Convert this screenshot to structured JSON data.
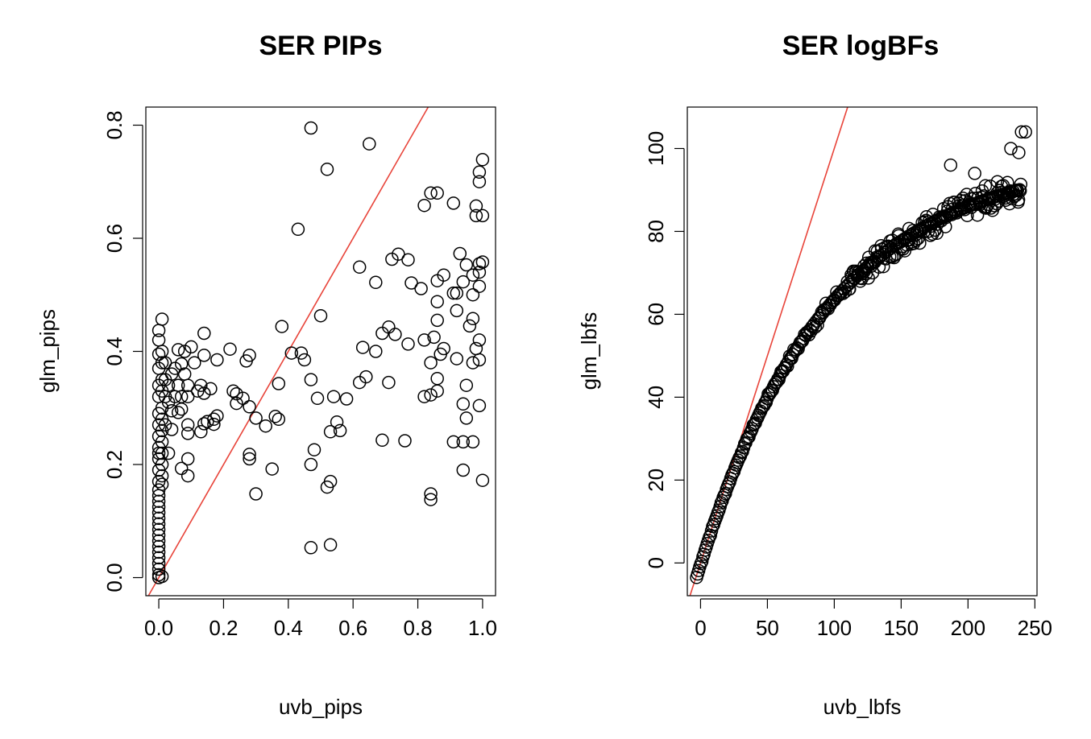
{
  "colors": {
    "points": "#000000",
    "refline": "#E8443A",
    "axes": "#000000",
    "background": "#FFFFFF"
  },
  "chart_data": [
    {
      "type": "scatter",
      "title": "SER PIPs",
      "xlabel": "uvb_pips",
      "ylabel": "glm_pips",
      "xlim": [
        -0.04,
        1.04
      ],
      "ylim": [
        -0.032,
        0.832
      ],
      "xticks": [
        0.0,
        0.2,
        0.4,
        0.6,
        0.8,
        1.0
      ],
      "xtick_labels": [
        "0.0",
        "0.2",
        "0.4",
        "0.6",
        "0.8",
        "1.0"
      ],
      "yticks": [
        0.0,
        0.2,
        0.4,
        0.6,
        0.8
      ],
      "ytick_labels": [
        "0.0",
        "0.2",
        "0.4",
        "0.6",
        "0.8"
      ],
      "reference_line": {
        "intercept": 0,
        "slope": 1
      },
      "points": [
        [
          0.47,
          0.795
        ],
        [
          0.65,
          0.767
        ],
        [
          0.52,
          0.722
        ],
        [
          0.43,
          0.616
        ],
        [
          0.5,
          0.463
        ],
        [
          0.38,
          0.444
        ],
        [
          0.84,
          0.68
        ],
        [
          0.86,
          0.68
        ],
        [
          0.82,
          0.658
        ],
        [
          0.91,
          0.662
        ],
        [
          0.98,
          0.657
        ],
        [
          1.0,
          0.739
        ],
        [
          0.99,
          0.717
        ],
        [
          0.99,
          0.7
        ],
        [
          0.98,
          0.64
        ],
        [
          1.0,
          0.64
        ],
        [
          0.93,
          0.573
        ],
        [
          0.95,
          0.553
        ],
        [
          0.74,
          0.572
        ],
        [
          0.72,
          0.563
        ],
        [
          0.77,
          0.562
        ],
        [
          0.62,
          0.549
        ],
        [
          0.86,
          0.525
        ],
        [
          0.88,
          0.535
        ],
        [
          0.67,
          0.522
        ],
        [
          0.78,
          0.521
        ],
        [
          0.81,
          0.511
        ],
        [
          0.91,
          0.503
        ],
        [
          0.92,
          0.503
        ],
        [
          0.94,
          0.523
        ],
        [
          0.97,
          0.535
        ],
        [
          0.99,
          0.555
        ],
        [
          0.99,
          0.54
        ],
        [
          1.0,
          0.558
        ],
        [
          0.99,
          0.515
        ],
        [
          0.97,
          0.5
        ],
        [
          0.86,
          0.488
        ],
        [
          0.92,
          0.472
        ],
        [
          0.97,
          0.458
        ],
        [
          0.96,
          0.445
        ],
        [
          0.99,
          0.42
        ],
        [
          0.98,
          0.405
        ],
        [
          0.86,
          0.455
        ],
        [
          0.71,
          0.443
        ],
        [
          0.73,
          0.43
        ],
        [
          0.69,
          0.432
        ],
        [
          0.77,
          0.413
        ],
        [
          0.82,
          0.42
        ],
        [
          0.63,
          0.407
        ],
        [
          0.67,
          0.4
        ],
        [
          0.85,
          0.425
        ],
        [
          0.88,
          0.405
        ],
        [
          0.87,
          0.395
        ],
        [
          0.84,
          0.38
        ],
        [
          0.92,
          0.387
        ],
        [
          0.97,
          0.38
        ],
        [
          0.99,
          0.385
        ],
        [
          0.41,
          0.397
        ],
        [
          0.44,
          0.397
        ],
        [
          0.45,
          0.385
        ],
        [
          0.64,
          0.355
        ],
        [
          0.62,
          0.345
        ],
        [
          0.71,
          0.345
        ],
        [
          0.86,
          0.352
        ],
        [
          0.95,
          0.34
        ],
        [
          0.84,
          0.323
        ],
        [
          0.82,
          0.32
        ],
        [
          0.86,
          0.33
        ],
        [
          0.94,
          0.307
        ],
        [
          0.95,
          0.282
        ],
        [
          0.99,
          0.304
        ],
        [
          0.91,
          0.24
        ],
        [
          0.94,
          0.24
        ],
        [
          0.97,
          0.24
        ],
        [
          0.94,
          0.19
        ],
        [
          1.0,
          0.172
        ],
        [
          0.69,
          0.243
        ],
        [
          0.76,
          0.242
        ],
        [
          0.84,
          0.148
        ],
        [
          0.84,
          0.138
        ],
        [
          0.47,
          0.35
        ],
        [
          0.37,
          0.343
        ],
        [
          0.49,
          0.317
        ],
        [
          0.54,
          0.32
        ],
        [
          0.58,
          0.316
        ],
        [
          0.55,
          0.275
        ],
        [
          0.53,
          0.258
        ],
        [
          0.56,
          0.26
        ],
        [
          0.48,
          0.226
        ],
        [
          0.47,
          0.2
        ],
        [
          0.52,
          0.16
        ],
        [
          0.53,
          0.17
        ],
        [
          0.47,
          0.053
        ],
        [
          0.53,
          0.058
        ],
        [
          0.3,
          0.282
        ],
        [
          0.33,
          0.268
        ],
        [
          0.36,
          0.285
        ],
        [
          0.37,
          0.28
        ],
        [
          0.35,
          0.192
        ],
        [
          0.28,
          0.218
        ],
        [
          0.28,
          0.21
        ],
        [
          0.3,
          0.148
        ],
        [
          0.27,
          0.383
        ],
        [
          0.28,
          0.393
        ],
        [
          0.22,
          0.404
        ],
        [
          0.23,
          0.33
        ],
        [
          0.24,
          0.325
        ],
        [
          0.24,
          0.308
        ],
        [
          0.26,
          0.317
        ],
        [
          0.28,
          0.302
        ],
        [
          0.17,
          0.28
        ],
        [
          0.18,
          0.286
        ],
        [
          0.17,
          0.271
        ],
        [
          0.15,
          0.276
        ],
        [
          0.14,
          0.272
        ],
        [
          0.13,
          0.258
        ],
        [
          0.12,
          0.33
        ],
        [
          0.13,
          0.34
        ],
        [
          0.14,
          0.326
        ],
        [
          0.16,
          0.334
        ],
        [
          0.18,
          0.385
        ],
        [
          0.14,
          0.393
        ],
        [
          0.14,
          0.432
        ],
        [
          0.1,
          0.408
        ],
        [
          0.11,
          0.38
        ],
        [
          0.08,
          0.4
        ],
        [
          0.07,
          0.378
        ],
        [
          0.06,
          0.403
        ],
        [
          0.05,
          0.37
        ],
        [
          0.04,
          0.36
        ],
        [
          0.06,
          0.34
        ],
        [
          0.08,
          0.36
        ],
        [
          0.09,
          0.34
        ],
        [
          0.07,
          0.32
        ],
        [
          0.09,
          0.32
        ],
        [
          0.05,
          0.32
        ],
        [
          0.04,
          0.295
        ],
        [
          0.03,
          0.31
        ],
        [
          0.06,
          0.292
        ],
        [
          0.07,
          0.298
        ],
        [
          0.09,
          0.27
        ],
        [
          0.09,
          0.255
        ],
        [
          0.04,
          0.262
        ],
        [
          0.03,
          0.22
        ],
        [
          0.07,
          0.193
        ],
        [
          0.09,
          0.21
        ],
        [
          0.09,
          0.18
        ],
        [
          0.01,
          0.457
        ],
        [
          0.0,
          0.437
        ],
        [
          0.0,
          0.42
        ],
        [
          0.01,
          0.4
        ],
        [
          0.0,
          0.395
        ],
        [
          0.01,
          0.38
        ],
        [
          0.0,
          0.37
        ],
        [
          0.01,
          0.35
        ],
        [
          0.0,
          0.34
        ],
        [
          0.01,
          0.33
        ],
        [
          0.0,
          0.32
        ],
        [
          0.02,
          0.32
        ],
        [
          0.01,
          0.3
        ],
        [
          0.0,
          0.29
        ],
        [
          0.01,
          0.28
        ],
        [
          0.0,
          0.27
        ],
        [
          0.01,
          0.26
        ],
        [
          0.0,
          0.25
        ],
        [
          0.01,
          0.24
        ],
        [
          0.0,
          0.23
        ],
        [
          0.0,
          0.22
        ],
        [
          0.0,
          0.21
        ],
        [
          0.01,
          0.2
        ],
        [
          0.0,
          0.19
        ],
        [
          0.01,
          0.18
        ],
        [
          0.0,
          0.17
        ],
        [
          0.01,
          0.165
        ],
        [
          0.0,
          0.155
        ],
        [
          0.0,
          0.145
        ],
        [
          0.0,
          0.135
        ],
        [
          0.0,
          0.125
        ],
        [
          0.0,
          0.115
        ],
        [
          0.0,
          0.105
        ],
        [
          0.0,
          0.095
        ],
        [
          0.0,
          0.085
        ],
        [
          0.0,
          0.075
        ],
        [
          0.0,
          0.065
        ],
        [
          0.0,
          0.055
        ],
        [
          0.0,
          0.045
        ],
        [
          0.0,
          0.035
        ],
        [
          0.0,
          0.025
        ],
        [
          0.0,
          0.015
        ],
        [
          0.0,
          0.005
        ],
        [
          0.0,
          0.0
        ],
        [
          0.01,
          0.002
        ],
        [
          0.02,
          0.35
        ],
        [
          0.02,
          0.38
        ],
        [
          0.03,
          0.34
        ],
        [
          0.02,
          0.27
        ],
        [
          0.01,
          0.22
        ]
      ]
    },
    {
      "type": "scatter",
      "title": "SER logBFs",
      "xlabel": "uvb_lbfs",
      "ylabel": "glm_lbfs",
      "xlim": [
        -9.9,
        251.6
      ],
      "ylim": [
        -7.9,
        110.0
      ],
      "xticks": [
        0,
        50,
        100,
        150,
        200,
        250
      ],
      "xtick_labels": [
        "0",
        "50",
        "100",
        "150",
        "200",
        "250"
      ],
      "yticks": [
        0,
        20,
        40,
        60,
        80,
        100
      ],
      "ytick_labels": [
        "0",
        "20",
        "40",
        "60",
        "80",
        "100"
      ],
      "reference_line": {
        "intercept": 0,
        "slope": 1
      },
      "curve": {
        "x_start": -3,
        "x_end": 240,
        "dx": 1.6,
        "fit": "101.7*(1-exp(-(x+3)/95.6))-3.5",
        "jitter_y": 2.5
      },
      "outliers": [
        [
          213,
          91
        ],
        [
          222,
          92
        ],
        [
          187,
          96
        ],
        [
          205,
          94
        ],
        [
          232,
          100
        ],
        [
          238,
          99
        ],
        [
          240,
          104
        ],
        [
          243,
          104
        ]
      ]
    }
  ]
}
